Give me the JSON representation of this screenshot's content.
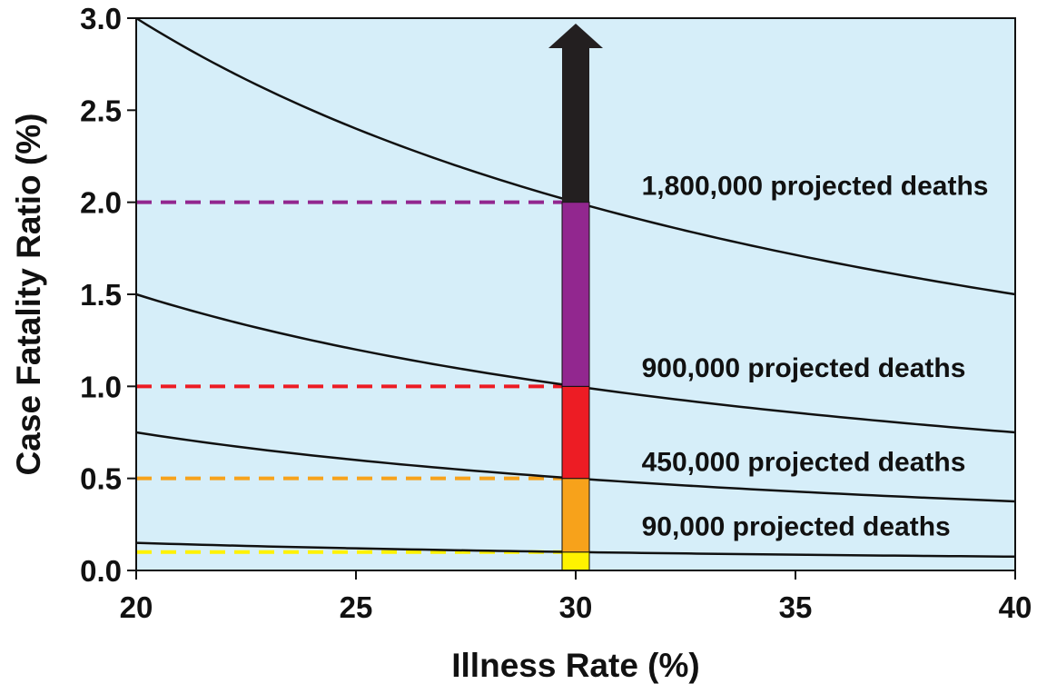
{
  "chart_data": {
    "type": "line",
    "title": "",
    "xlabel": "Illness Rate (%)",
    "ylabel": "Case Fatality Ratio (%)",
    "xlim": [
      20,
      40
    ],
    "ylim": [
      0,
      3.0
    ],
    "xticks": [
      "20",
      "25",
      "30",
      "35",
      "40"
    ],
    "yticks": [
      "0.0",
      "0.5",
      "1.0",
      "1.5",
      "2.0",
      "2.5",
      "3.0"
    ],
    "grid": false,
    "background_color": "#d6eef9",
    "series": [
      {
        "name": "1,800,000 projected deaths",
        "x": [
          20,
          22.5,
          25,
          27.5,
          30,
          32.5,
          35,
          37.5,
          40
        ],
        "y": [
          3.0,
          2.667,
          2.4,
          2.182,
          2.0,
          1.846,
          1.714,
          1.6,
          1.5
        ]
      },
      {
        "name": "900,000 projected deaths",
        "x": [
          20,
          22.5,
          25,
          27.5,
          30,
          32.5,
          35,
          37.5,
          40
        ],
        "y": [
          1.5,
          1.333,
          1.2,
          1.091,
          1.0,
          0.923,
          0.857,
          0.8,
          0.75
        ]
      },
      {
        "name": "450,000 projected deaths",
        "x": [
          20,
          22.5,
          25,
          27.5,
          30,
          32.5,
          35,
          37.5,
          40
        ],
        "y": [
          0.75,
          0.667,
          0.6,
          0.545,
          0.5,
          0.462,
          0.429,
          0.4,
          0.375
        ]
      },
      {
        "name": "90,000 projected deaths",
        "x": [
          20,
          22.5,
          25,
          27.5,
          30,
          32.5,
          35,
          37.5,
          40
        ],
        "y": [
          0.15,
          0.133,
          0.12,
          0.109,
          0.1,
          0.092,
          0.086,
          0.08,
          0.075
        ]
      }
    ],
    "bar_segments": [
      {
        "x": 30,
        "from": 0.0,
        "to": 0.1,
        "color": "#fff200"
      },
      {
        "x": 30,
        "from": 0.1,
        "to": 0.5,
        "color": "#f7a21b"
      },
      {
        "x": 30,
        "from": 0.5,
        "to": 1.0,
        "color": "#ed1c24"
      },
      {
        "x": 30,
        "from": 1.0,
        "to": 2.0,
        "color": "#92278f"
      },
      {
        "x": 30,
        "from": 2.0,
        "to": 3.0,
        "color": "#231f20",
        "arrow": true
      }
    ],
    "reference_lines": [
      {
        "y": 0.1,
        "color": "#fff200",
        "style": "dashed"
      },
      {
        "y": 0.5,
        "color": "#f7a21b",
        "style": "dashed"
      },
      {
        "y": 1.0,
        "color": "#ed1c24",
        "style": "dashed"
      },
      {
        "y": 2.0,
        "color": "#92278f",
        "style": "dashed"
      }
    ],
    "annotations": [
      {
        "text": "1,800,000 projected deaths",
        "x": 31.5,
        "y": 2.04
      },
      {
        "text": "900,000 projected deaths",
        "x": 31.5,
        "y": 1.05
      },
      {
        "text": "450,000 projected deaths",
        "x": 31.5,
        "y": 0.54
      },
      {
        "text": "90,000 projected deaths",
        "x": 31.5,
        "y": 0.19
      }
    ]
  }
}
